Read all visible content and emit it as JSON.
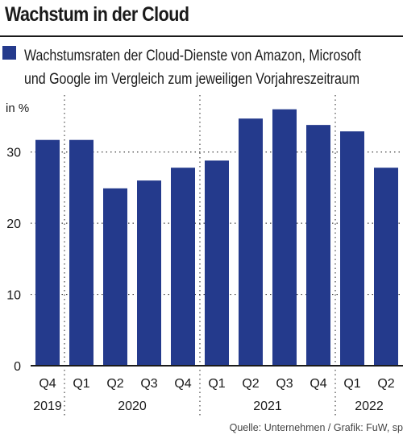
{
  "title": "Wachstum in der Cloud",
  "legend": {
    "line1": "Wachstumsraten der Cloud-Dienste von Amazon, Microsoft",
    "line2": "und Google im Vergleich zum jeweiligen Vorjahreszeitraum"
  },
  "unit_label": "in %",
  "source": "Quelle: Unternehmen / Grafik: FuW, sp",
  "colors": {
    "bar": "#243a8c",
    "text": "#1a1a1a",
    "grid": "#444444"
  },
  "chart_data": {
    "type": "bar",
    "categories": [
      "Q4",
      "Q1",
      "Q2",
      "Q3",
      "Q4",
      "Q1",
      "Q2",
      "Q3",
      "Q4",
      "Q1",
      "Q2"
    ],
    "years": [
      {
        "label": "2019",
        "start": 0,
        "end": 0
      },
      {
        "label": "2020",
        "start": 1,
        "end": 4
      },
      {
        "label": "2021",
        "start": 5,
        "end": 8
      },
      {
        "label": "2022",
        "start": 9,
        "end": 10
      }
    ],
    "values": [
      31.7,
      31.7,
      24.9,
      26.0,
      27.8,
      28.8,
      34.7,
      36.0,
      33.8,
      32.9,
      27.8
    ],
    "ylim": [
      0,
      38
    ],
    "yticks": [
      0,
      10,
      20,
      30
    ],
    "grid": true
  }
}
